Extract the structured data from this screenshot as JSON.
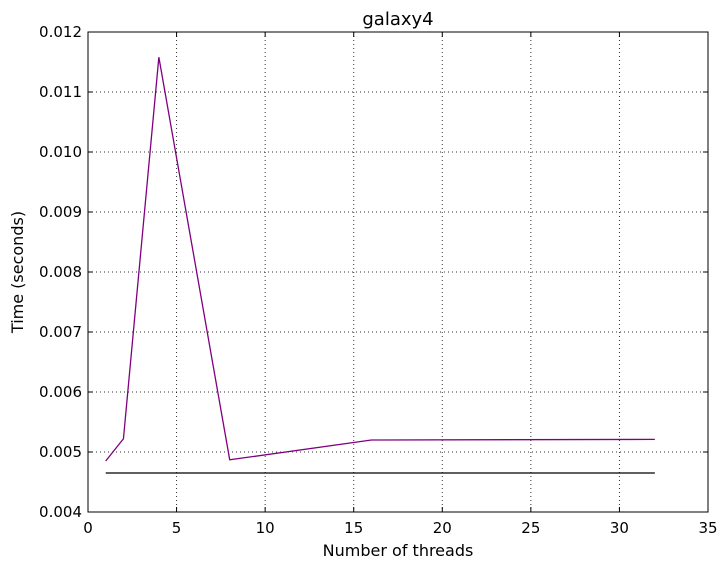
{
  "chart_data": {
    "type": "line",
    "title": "galaxy4",
    "xlabel": "Number of threads",
    "ylabel": "Time (seconds)",
    "xlim": [
      0,
      35
    ],
    "ylim": [
      0.004,
      0.012
    ],
    "xticks": [
      0,
      5,
      10,
      15,
      20,
      25,
      30,
      35
    ],
    "yticks": [
      0.004,
      0.005,
      0.006,
      0.007,
      0.008,
      0.009,
      0.01,
      0.011,
      0.012
    ],
    "xtick_labels": [
      "0",
      "5",
      "10",
      "15",
      "20",
      "25",
      "30",
      "35"
    ],
    "ytick_labels": [
      "0.004",
      "0.005",
      "0.006",
      "0.007",
      "0.008",
      "0.009",
      "0.010",
      "0.011",
      "0.012"
    ],
    "grid": true,
    "series": [
      {
        "color": "#800080",
        "x": [
          1,
          2,
          4,
          8,
          16,
          32
        ],
        "y": [
          0.00485,
          0.00522,
          0.01158,
          0.00487,
          0.0052,
          0.00521
        ]
      },
      {
        "color": "#000000",
        "x": [
          1,
          32
        ],
        "y": [
          0.00465,
          0.00465
        ]
      }
    ]
  }
}
